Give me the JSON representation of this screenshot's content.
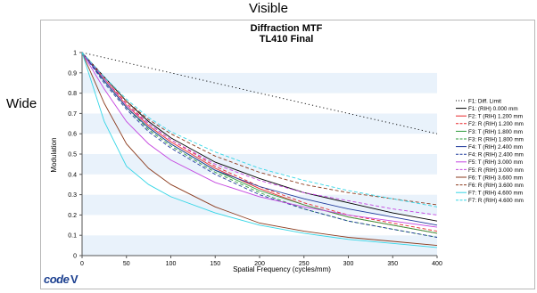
{
  "outer_title": "Visible",
  "row_label": "Wide",
  "logo_text": "code V",
  "chart_data": {
    "type": "line",
    "title": "Diffraction MTF",
    "subtitle": "TL410 Final",
    "xlabel": "Spatial Frequency (cycles/mm)",
    "ylabel": "Modulation",
    "xlim": [
      0,
      400
    ],
    "ylim": [
      0,
      1
    ],
    "xticks": [
      0,
      50,
      100,
      150,
      200,
      250,
      300,
      350,
      400
    ],
    "yticks": [
      0,
      0.1,
      0.2,
      0.3,
      0.4,
      0.5,
      0.6,
      0.7,
      0.8,
      0.9,
      1
    ],
    "grid": "alternating horizontal bands",
    "legend_position": "right",
    "x": [
      0,
      25,
      50,
      75,
      100,
      150,
      200,
      250,
      300,
      350,
      400
    ],
    "series": [
      {
        "name": "F1: Diff. Limit",
        "color": "#000000",
        "dash": "dot",
        "values": [
          1.0,
          0.975,
          0.95,
          0.925,
          0.9,
          0.85,
          0.8,
          0.75,
          0.7,
          0.65,
          0.6
        ]
      },
      {
        "name": "F1: (RIH) 0.000 mm",
        "color": "#000000",
        "dash": "solid",
        "values": [
          1.0,
          0.88,
          0.76,
          0.66,
          0.58,
          0.46,
          0.38,
          0.31,
          0.26,
          0.21,
          0.17
        ]
      },
      {
        "name": "F2: T (RIH) 1.200 mm",
        "color": "#e8262a",
        "dash": "solid",
        "values": [
          1.0,
          0.87,
          0.74,
          0.64,
          0.56,
          0.43,
          0.33,
          0.25,
          0.19,
          0.15,
          0.11
        ]
      },
      {
        "name": "F2: R (RIH) 1.200 mm",
        "color": "#e8262a",
        "dash": "dash",
        "values": [
          1.0,
          0.87,
          0.75,
          0.65,
          0.57,
          0.44,
          0.34,
          0.26,
          0.2,
          0.16,
          0.12
        ]
      },
      {
        "name": "F3: T (RIH) 1.800 mm",
        "color": "#2d9b3b",
        "dash": "solid",
        "values": [
          1.0,
          0.86,
          0.73,
          0.63,
          0.55,
          0.42,
          0.32,
          0.25,
          0.19,
          0.15,
          0.11
        ]
      },
      {
        "name": "F3: R (RIH) 1.800 mm",
        "color": "#2d9b3b",
        "dash": "dash",
        "values": [
          1.0,
          0.86,
          0.73,
          0.62,
          0.54,
          0.41,
          0.31,
          0.23,
          0.17,
          0.13,
          0.09
        ]
      },
      {
        "name": "F4: T (RIH) 2.400 mm",
        "color": "#1f3a9c",
        "dash": "solid",
        "values": [
          1.0,
          0.86,
          0.73,
          0.63,
          0.55,
          0.42,
          0.34,
          0.28,
          0.23,
          0.19,
          0.15
        ]
      },
      {
        "name": "F4: R (RIH) 2.400 mm",
        "color": "#1f3a9c",
        "dash": "dash",
        "values": [
          1.0,
          0.85,
          0.72,
          0.61,
          0.53,
          0.4,
          0.3,
          0.23,
          0.17,
          0.13,
          0.09
        ]
      },
      {
        "name": "F5: T (RIH) 3.000 mm",
        "color": "#c445e0",
        "dash": "solid",
        "values": [
          1.0,
          0.82,
          0.66,
          0.55,
          0.47,
          0.36,
          0.29,
          0.24,
          0.2,
          0.17,
          0.14
        ]
      },
      {
        "name": "F5: R (RIH) 3.000 mm",
        "color": "#c445e0",
        "dash": "dash",
        "values": [
          1.0,
          0.87,
          0.74,
          0.65,
          0.57,
          0.45,
          0.37,
          0.31,
          0.27,
          0.23,
          0.2
        ]
      },
      {
        "name": "F6: T (RIH) 3.600 mm",
        "color": "#8b3a1c",
        "dash": "solid",
        "values": [
          1.0,
          0.75,
          0.55,
          0.43,
          0.35,
          0.24,
          0.16,
          0.12,
          0.09,
          0.07,
          0.05
        ]
      },
      {
        "name": "F6: R (RIH) 3.600 mm",
        "color": "#8b3a1c",
        "dash": "dash",
        "values": [
          1.0,
          0.88,
          0.76,
          0.67,
          0.6,
          0.49,
          0.41,
          0.35,
          0.31,
          0.28,
          0.25
        ]
      },
      {
        "name": "F7: T (RIH) 4.600 mm",
        "color": "#35d6e6",
        "dash": "solid",
        "values": [
          1.0,
          0.66,
          0.44,
          0.35,
          0.29,
          0.21,
          0.15,
          0.11,
          0.08,
          0.06,
          0.04
        ]
      },
      {
        "name": "F7: R (RIH) 4.600 mm",
        "color": "#35d6e6",
        "dash": "dash",
        "values": [
          1.0,
          0.88,
          0.77,
          0.68,
          0.61,
          0.51,
          0.43,
          0.37,
          0.32,
          0.28,
          0.24
        ]
      }
    ]
  }
}
